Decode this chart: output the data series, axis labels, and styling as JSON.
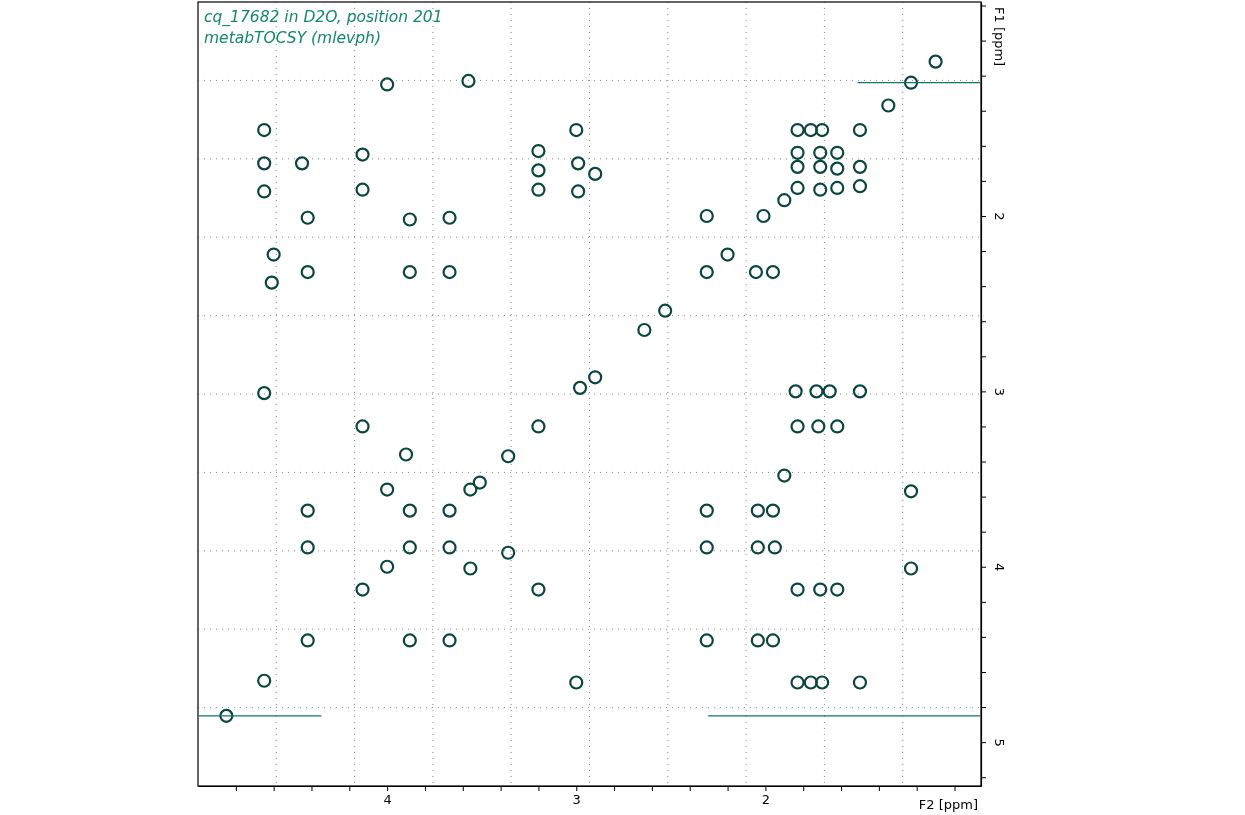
{
  "chart_data": {
    "type": "scatter",
    "title": "cq_17682 in D2O, position 201",
    "subtitle": "metabTOCSY (mlevph)",
    "xlabel": "F2 [ppm]",
    "ylabel": "F1 [ppm]",
    "xlim": [
      5.0,
      0.86
    ],
    "ylim": [
      5.25,
      0.78
    ],
    "xticks": [
      {
        "value": 4.8,
        "label": null
      },
      {
        "value": 4.6,
        "label": null
      },
      {
        "value": 4.4,
        "label": null
      },
      {
        "value": 4.2,
        "label": null
      },
      4,
      {
        "value": 3.8,
        "label": null
      },
      {
        "value": 3.6,
        "label": null
      },
      {
        "value": 3.4,
        "label": null
      },
      {
        "value": 3.2,
        "label": null
      },
      3,
      {
        "value": 2.8,
        "label": null
      },
      {
        "value": 2.6,
        "label": null
      },
      {
        "value": 2.4,
        "label": null
      },
      {
        "value": 2.2,
        "label": null
      },
      2,
      {
        "value": 1.8,
        "label": null
      },
      {
        "value": 1.6,
        "label": null
      },
      {
        "value": 1.4,
        "label": null
      },
      {
        "value": 1.2,
        "label": null
      },
      {
        "value": 1.0,
        "label": null
      }
    ],
    "yticks": [
      {
        "value": 0.8,
        "label": null
      },
      {
        "value": 1.0,
        "label": null
      },
      {
        "value": 1.2,
        "label": null
      },
      {
        "value": 1.4,
        "label": null
      },
      {
        "value": 1.6,
        "label": null
      },
      {
        "value": 1.8,
        "label": null
      },
      2,
      {
        "value": 2.2,
        "label": null
      },
      {
        "value": 2.4,
        "label": null
      },
      {
        "value": 2.6,
        "label": null
      },
      {
        "value": 2.8,
        "label": null
      },
      3,
      {
        "value": 3.2,
        "label": null
      },
      {
        "value": 3.4,
        "label": null
      },
      {
        "value": 3.6,
        "label": null
      },
      {
        "value": 3.8,
        "label": null
      },
      4,
      {
        "value": 4.2,
        "label": null
      },
      {
        "value": 4.4,
        "label": null
      },
      {
        "value": 4.6,
        "label": null
      },
      {
        "value": 4.8,
        "label": null
      },
      5,
      {
        "value": 5.2,
        "label": null
      }
    ],
    "grid": true,
    "marker": "circle",
    "series": [
      {
        "color": "#0b4541",
        "x": [
          4.0,
          3.57,
          1.23,
          1.1,
          1.35,
          4.65,
          3.0,
          1.83,
          1.76,
          1.7,
          1.5,
          4.65,
          4.65,
          4.45,
          4.13,
          4.13,
          3.2,
          3.2,
          3.2,
          2.99,
          2.99,
          2.9,
          1.83,
          1.71,
          1.62,
          1.83,
          1.71,
          1.62,
          1.83,
          1.71,
          1.62,
          1.5,
          1.5,
          1.9,
          4.42,
          3.88,
          3.67,
          2.31,
          2.01,
          4.6,
          2.2,
          4.42,
          3.88,
          3.67,
          2.31,
          2.05,
          1.96,
          4.61,
          2.53,
          2.64,
          2.9,
          4.65,
          2.98,
          1.84,
          1.73,
          1.66,
          1.5,
          4.13,
          3.2,
          1.83,
          1.72,
          1.62,
          3.9,
          3.36,
          1.9,
          4.0,
          3.56,
          3.51,
          1.23,
          4.42,
          3.88,
          3.67,
          2.31,
          2.04,
          1.96,
          4.42,
          3.88,
          3.67,
          3.36,
          2.31,
          2.04,
          1.95,
          4.0,
          3.56,
          1.23,
          4.13,
          3.2,
          1.83,
          1.71,
          1.62,
          4.42,
          3.88,
          3.67,
          2.31,
          2.04,
          1.96,
          4.65,
          3.0,
          1.83,
          1.76,
          1.7,
          1.5,
          4.85
        ],
        "values": [
          1.25,
          1.23,
          1.24,
          1.12,
          1.37,
          1.51,
          1.51,
          1.51,
          1.51,
          1.51,
          1.51,
          1.7,
          1.86,
          1.7,
          1.65,
          1.85,
          1.63,
          1.74,
          1.85,
          1.7,
          1.86,
          1.76,
          1.64,
          1.64,
          1.64,
          1.72,
          1.72,
          1.73,
          1.84,
          1.85,
          1.84,
          1.72,
          1.83,
          1.91,
          2.01,
          2.02,
          2.01,
          2.0,
          2.0,
          2.22,
          2.22,
          2.32,
          2.32,
          2.32,
          2.32,
          2.32,
          2.32,
          2.38,
          2.54,
          2.65,
          2.92,
          3.01,
          2.98,
          3.0,
          3.0,
          3.0,
          3.0,
          3.2,
          3.2,
          3.2,
          3.2,
          3.2,
          3.36,
          3.37,
          3.48,
          3.56,
          3.56,
          3.52,
          3.57,
          3.68,
          3.68,
          3.68,
          3.68,
          3.68,
          3.68,
          3.89,
          3.89,
          3.89,
          3.92,
          3.89,
          3.89,
          3.89,
          4.0,
          4.01,
          4.01,
          4.13,
          4.13,
          4.13,
          4.13,
          4.13,
          4.42,
          4.42,
          4.42,
          4.42,
          4.42,
          4.42,
          4.65,
          4.66,
          4.66,
          4.66,
          4.66,
          4.66,
          4.85
        ]
      },
      {
        "type": "line",
        "color": "#11756f",
        "marker": "none",
        "x": [
          5.0,
          4.35,
          3.0,
          2.3,
          0.86
        ],
        "values": [
          4.85,
          4.85,
          null,
          4.85,
          4.85
        ]
      },
      {
        "type": "line",
        "color": "#11756f",
        "marker": "none",
        "x": [
          1.51,
          0.86
        ],
        "values": [
          1.24,
          1.24
        ]
      }
    ]
  }
}
